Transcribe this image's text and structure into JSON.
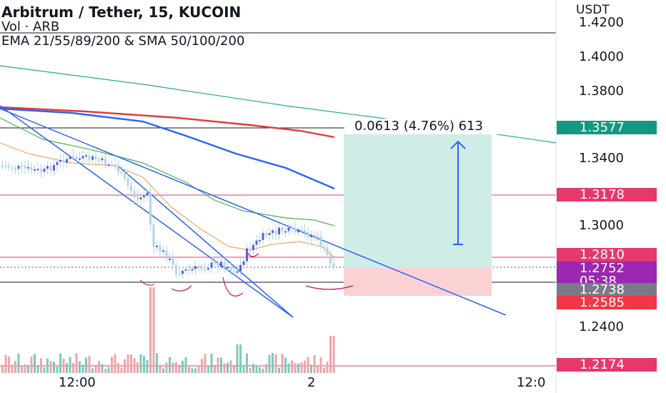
{
  "legend": {
    "symbol_line": "Arbitrum / Tether, 15, KUCOIN",
    "volume_line": "Vol · ARB",
    "indicators_line": "EMA 21/55/89/200 & SMA 50/100/200"
  },
  "price_axis": {
    "title": "USDT",
    "ticks": [
      "1.4200",
      "1.4000",
      "1.3800",
      "1.3400",
      "1.3000",
      "1.2400"
    ]
  },
  "time_axis": {
    "labels": [
      "12:00",
      "2",
      "12:0"
    ]
  },
  "measure_tool": {
    "label": "0.0613 (4.76%) 613"
  },
  "price_tags": {
    "tag_1": "1.3577",
    "tag_2": "1.3178",
    "tag_3": "1.2810",
    "tag_4": "1.2752",
    "tag_4_timer": "05:38",
    "tag_5": "1.2738",
    "tag_6": "1.2585",
    "tag_7": "1.2174"
  },
  "colors": {
    "up_candle": "#5b5fd9",
    "down_candle": "#b2d4e8",
    "ema_orange": "#f4a460",
    "ema_green": "#4caf50",
    "sma_red": "#e53935",
    "sma_blue": "#2962ff",
    "sma_teal": "#26a69a",
    "trendline_blue": "#2962ff",
    "target_zone": "#d0ece6",
    "stop_zone": "#fbd2d4",
    "tag_green": "#139980",
    "tag_pink": "#e5396b",
    "tag_purple": "#9c27b0",
    "tag_grey": "#787b86",
    "tag_red": "#f23645"
  },
  "icons": [
    "measure-arrow-icon"
  ]
}
